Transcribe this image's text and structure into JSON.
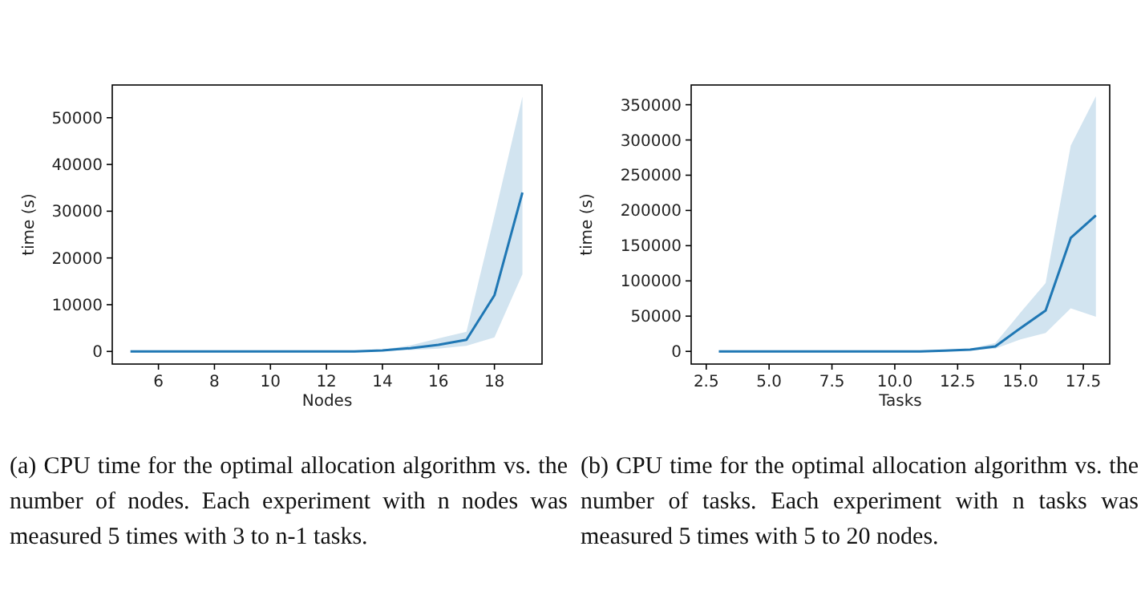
{
  "chart_data": [
    {
      "type": "line",
      "xlabel": "Nodes",
      "ylabel": "time (s)",
      "xlim": [
        4.35,
        19.7
      ],
      "xticks": [
        6,
        8,
        10,
        12,
        14,
        16,
        18
      ],
      "ylim": [
        -2700,
        57000
      ],
      "yticks": [
        0,
        10000,
        20000,
        30000,
        40000,
        50000
      ],
      "grid": false,
      "x": [
        5,
        6,
        7,
        8,
        9,
        10,
        11,
        12,
        13,
        14,
        15,
        16,
        17,
        18,
        19
      ],
      "series": [
        {
          "color": "#1f77b4",
          "values": [
            0,
            0,
            0,
            0,
            0,
            0,
            0,
            0,
            0,
            200,
            700,
            1400,
            2500,
            12000,
            34000
          ],
          "lower": [
            0,
            0,
            0,
            0,
            0,
            0,
            0,
            0,
            0,
            100,
            300,
            600,
            1200,
            3000,
            16500
          ],
          "upper": [
            0,
            0,
            0,
            0,
            0,
            0,
            0,
            0,
            0,
            400,
            1300,
            2800,
            4200,
            29000,
            54500
          ]
        }
      ],
      "annotations": [
        "(a)  CPU time for the optimal allocation algorithm vs. the number of nodes. Each experiment with n nodes was measured 5 times with 3 to n-1 tasks."
      ]
    },
    {
      "type": "line",
      "xlabel": "Tasks",
      "ylabel": "time (s)",
      "xlim": [
        1.9,
        18.55
      ],
      "xticks": [
        2.5,
        {
          "value": 5,
          "label": "5.0"
        },
        7.5,
        {
          "value": 10,
          "label": "10.0"
        },
        12.5,
        {
          "value": 15,
          "label": "15.0"
        },
        17.5
      ],
      "ylim": [
        -18000,
        378000
      ],
      "yticks": [
        0,
        50000,
        100000,
        150000,
        200000,
        250000,
        300000,
        350000
      ],
      "grid": false,
      "x": [
        3,
        4,
        5,
        6,
        7,
        8,
        9,
        10,
        11,
        12,
        13,
        14,
        15,
        16,
        17,
        18
      ],
      "series": [
        {
          "color": "#1f77b4",
          "values": [
            0,
            0,
            0,
            0,
            0,
            0,
            0,
            0,
            0,
            1000,
            2500,
            7000,
            33000,
            58000,
            161000,
            193000
          ],
          "lower": [
            0,
            0,
            0,
            0,
            0,
            0,
            0,
            0,
            0,
            0,
            1500,
            4000,
            17000,
            26000,
            61000,
            49000
          ],
          "upper": [
            0,
            0,
            0,
            0,
            0,
            0,
            0,
            0,
            0,
            2000,
            4000,
            12000,
            55000,
            97000,
            292000,
            362000
          ]
        }
      ],
      "annotations": [
        "(b)  CPU time for the optimal allocation algorithm vs. the number of tasks. Each experiment with n tasks was measured 5 times with 5 to 20 nodes."
      ]
    }
  ]
}
